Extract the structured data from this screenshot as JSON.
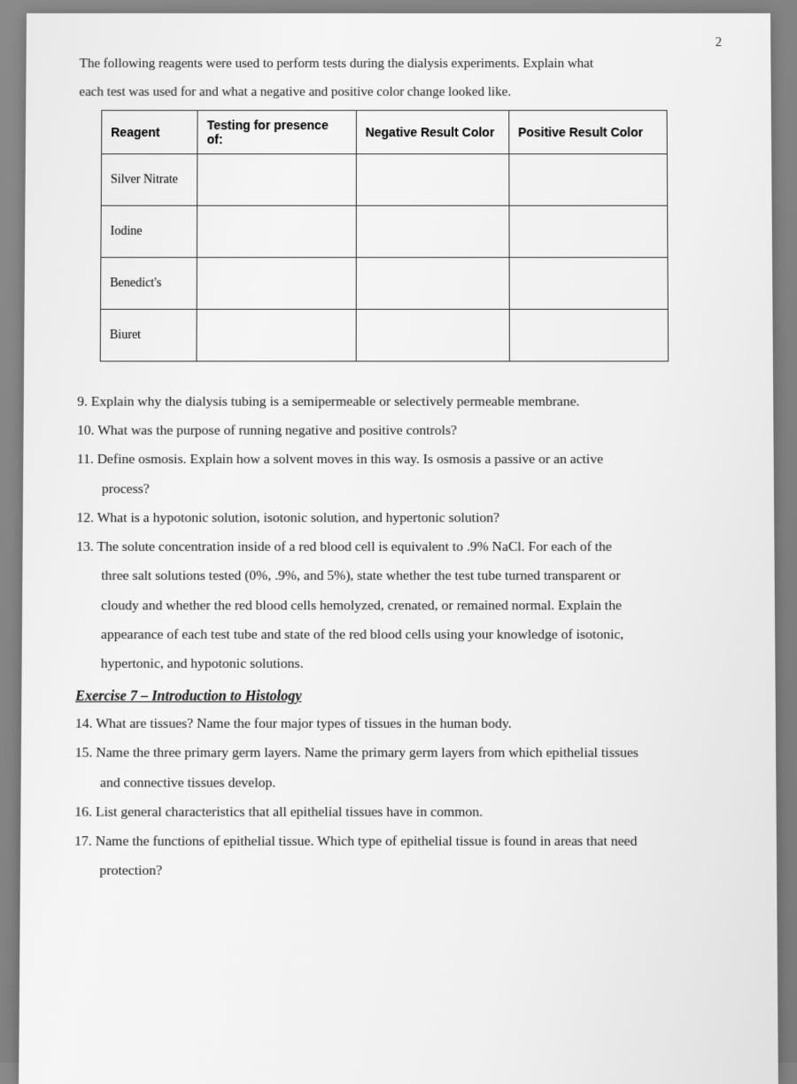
{
  "page_number": "2",
  "intro": {
    "line1": "The following reagents were used to perform tests during the dialysis experiments. Explain what",
    "line2": "each test was used for and what a negative and positive color change looked like."
  },
  "table": {
    "headers": {
      "reagent": "Reagent",
      "testing": "Testing for presence of:",
      "negative": "Negative Result Color",
      "positive": "Positive Result Color"
    },
    "rows": [
      {
        "reagent": "Silver Nitrate",
        "testing": "",
        "negative": "",
        "positive": ""
      },
      {
        "reagent": "Iodine",
        "testing": "",
        "negative": "",
        "positive": ""
      },
      {
        "reagent": "Benedict's",
        "testing": "",
        "negative": "",
        "positive": ""
      },
      {
        "reagent": "Biuret",
        "testing": "",
        "negative": "",
        "positive": ""
      }
    ],
    "border_color": "#333333",
    "col_widths": [
      "17%",
      "28%",
      "27%",
      "28%"
    ]
  },
  "questions_block1": [
    {
      "num": "9.",
      "text": "Explain why the dialysis tubing is a semipermeable or selectively permeable membrane."
    },
    {
      "num": "10.",
      "text": "What was the purpose of running negative and positive controls?"
    },
    {
      "num": "11.",
      "text": "Define osmosis. Explain how a solvent moves in this way. Is osmosis a passive or an active",
      "cont": [
        "process?"
      ]
    },
    {
      "num": "12.",
      "text": "What is a hypotonic solution, isotonic solution, and hypertonic solution?"
    },
    {
      "num": "13.",
      "text": "The solute concentration inside of a red blood cell is equivalent to .9% NaCl. For each of the",
      "cont": [
        "three salt solutions tested (0%, .9%, and 5%), state whether the test tube turned transparent or",
        "cloudy and whether the red blood cells hemolyzed, crenated, or remained normal. Explain the",
        "appearance of each test tube and state of the red blood cells using your knowledge of isotonic,",
        "hypertonic, and hypotonic solutions."
      ]
    }
  ],
  "exercise_heading": "Exercise 7 – Introduction to Histology",
  "questions_block2": [
    {
      "num": "14.",
      "text": "What are tissues? Name the four major types of tissues in the human body."
    },
    {
      "num": "15.",
      "text": "Name the three primary germ layers. Name the primary germ layers from which epithelial tissues",
      "cont": [
        "and connective tissues develop."
      ]
    },
    {
      "num": "16.",
      "text": "List general characteristics that all epithelial tissues have in common."
    },
    {
      "num": "17.",
      "text": "Name the functions of epithelial tissue. Which type of epithelial tissue is found in areas that need",
      "cont": [
        "protection?"
      ]
    }
  ],
  "colors": {
    "page_bg": "#f0f0f0",
    "text": "#1a1a1a",
    "outer_bg": "#7a7a7a"
  }
}
